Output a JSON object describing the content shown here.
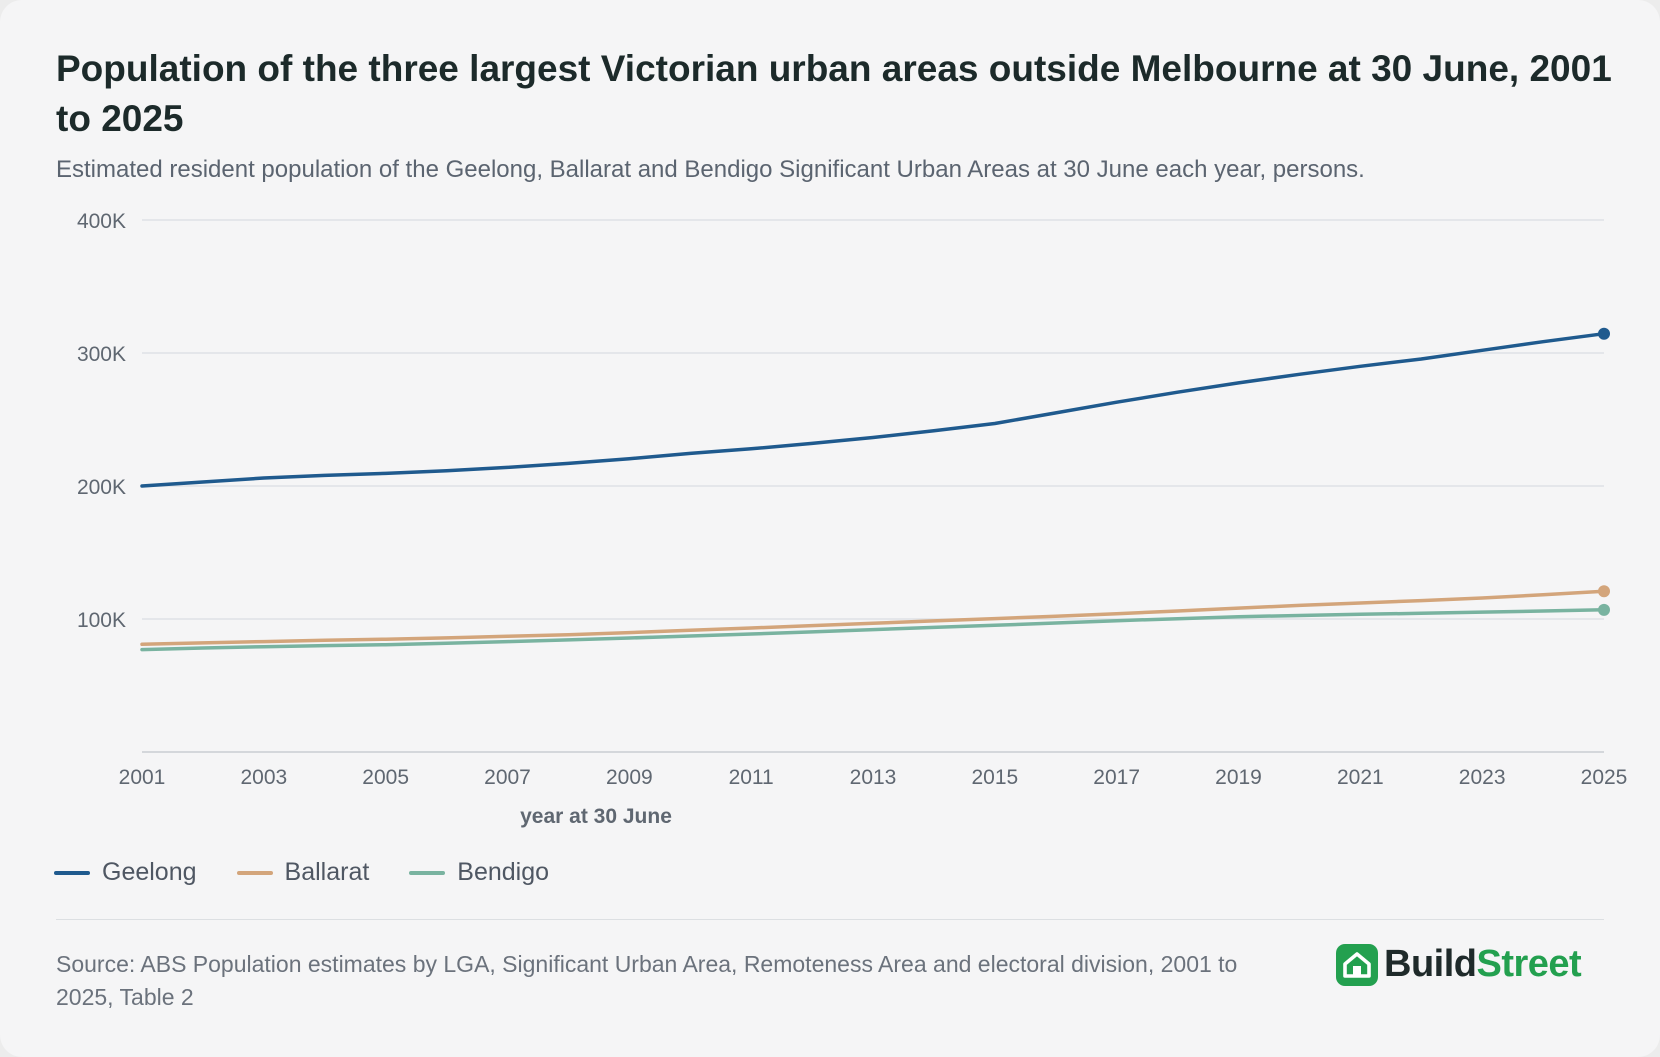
{
  "header": {
    "title": "Population of the three largest Victorian urban areas outside Melbourne at 30 June, 2001 to 2025",
    "subtitle": "Estimated resident population of the Geelong, Ballarat and Bendigo Significant Urban Areas at 30 June each year, persons."
  },
  "chart_data": {
    "type": "line",
    "xlabel": "year at 30 June",
    "ylabel": "",
    "x": [
      2001,
      2002,
      2003,
      2004,
      2005,
      2006,
      2007,
      2008,
      2009,
      2010,
      2011,
      2012,
      2013,
      2014,
      2015,
      2016,
      2017,
      2018,
      2019,
      2020,
      2021,
      2022,
      2023,
      2024,
      2025
    ],
    "xticks": [
      "2001",
      "2003",
      "2005",
      "2007",
      "2009",
      "2011",
      "2013",
      "2015",
      "2017",
      "2019",
      "2021",
      "2023",
      "2025"
    ],
    "ylim": [
      0,
      400000
    ],
    "yticks": [
      {
        "value": 100000,
        "label": "100K"
      },
      {
        "value": 200000,
        "label": "200K"
      },
      {
        "value": 300000,
        "label": "300K"
      },
      {
        "value": 400000,
        "label": "400K"
      }
    ],
    "grid": true,
    "legend_position": "bottom-left",
    "series": [
      {
        "name": "Geelong",
        "color": "#1f5a8e",
        "values": [
          200000,
          203000,
          206000,
          208000,
          209500,
          211500,
          214000,
          217000,
          220500,
          224500,
          228000,
          232000,
          236500,
          241500,
          247000,
          255000,
          263000,
          270500,
          277500,
          284000,
          290000,
          295500,
          302000,
          308500,
          314500
        ]
      },
      {
        "name": "Ballarat",
        "color": "#d3a57b",
        "values": [
          81000,
          82000,
          83000,
          84000,
          84800,
          85800,
          87000,
          88200,
          89800,
          91500,
          93200,
          95000,
          96800,
          98600,
          100300,
          102000,
          104000,
          106000,
          108200,
          110200,
          112000,
          113800,
          115800,
          118200,
          120900
        ]
      },
      {
        "name": "Bendigo",
        "color": "#79b3a0",
        "values": [
          77000,
          78200,
          79200,
          80000,
          80700,
          81700,
          83000,
          84300,
          85700,
          87200,
          88700,
          90300,
          92000,
          93700,
          95300,
          97000,
          98700,
          100200,
          101700,
          102600,
          103500,
          104300,
          105200,
          106000,
          106900
        ]
      }
    ]
  },
  "footer": {
    "source": "Source: ABS Population estimates by LGA, Significant Urban Area, Remoteness Area and electoral division, 2001 to 2025, Table 2",
    "brand_part1": "Build",
    "brand_part2": "Street",
    "brand_color": "#23a04f"
  }
}
